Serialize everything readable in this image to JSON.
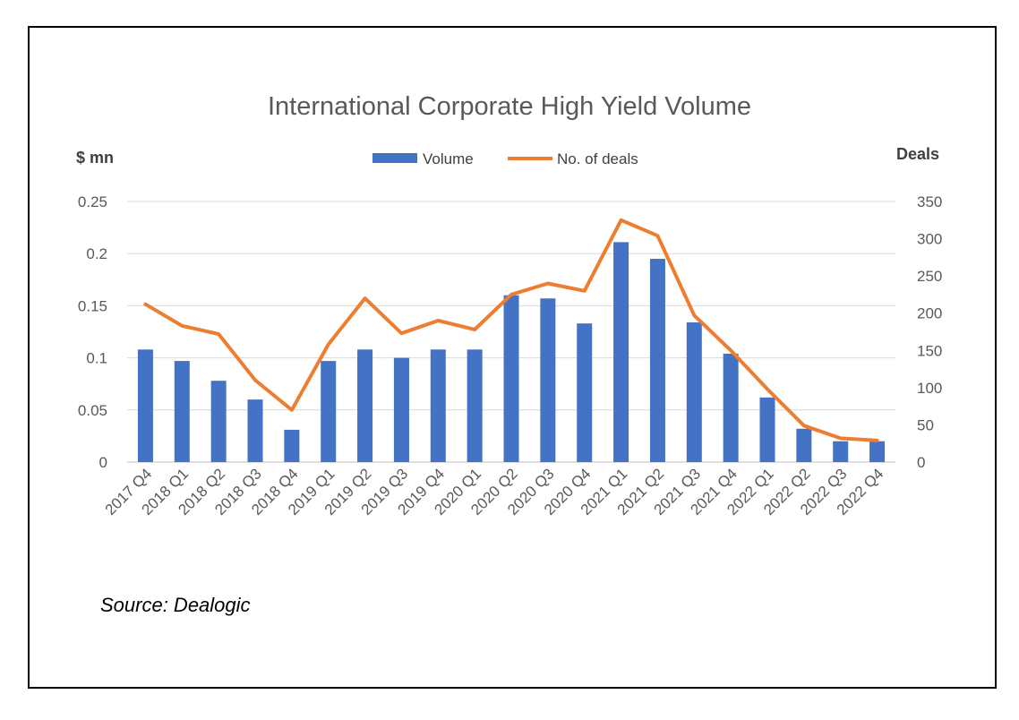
{
  "chart_data": {
    "type": "bar+line",
    "title": "International Corporate High Yield Volume",
    "y_left_label": "$ mn",
    "y_right_label": "Deals",
    "categories": [
      "2017 Q4",
      "2018 Q1",
      "2018 Q2",
      "2018 Q3",
      "2018 Q4",
      "2019 Q1",
      "2019 Q2",
      "2019 Q3",
      "2019 Q4",
      "2020 Q1",
      "2020 Q2",
      "2020 Q3",
      "2020 Q4",
      "2021 Q1",
      "2021 Q2",
      "2021 Q3",
      "2021 Q4",
      "2022 Q1",
      "2022 Q2",
      "2022 Q3",
      "2022 Q4"
    ],
    "series": [
      {
        "name": "Volume",
        "type": "bar",
        "axis": "left",
        "color": "#4472C4",
        "values": [
          0.108,
          0.097,
          0.078,
          0.06,
          0.031,
          0.097,
          0.108,
          0.1,
          0.108,
          0.108,
          0.16,
          0.157,
          0.133,
          0.211,
          0.195,
          0.134,
          0.104,
          0.062,
          0.032,
          0.02,
          0.02
        ]
      },
      {
        "name": "No. of deals",
        "type": "line",
        "axis": "right",
        "color": "#ED7D31",
        "values": [
          212,
          183,
          172,
          110,
          70,
          158,
          220,
          173,
          190,
          178,
          225,
          240,
          230,
          325,
          304,
          197,
          150,
          98,
          49,
          32,
          29
        ]
      }
    ],
    "y_left": {
      "min": 0,
      "max": 0.25,
      "ticks": [
        "0",
        "0.05",
        "0.1",
        "0.15",
        "0.2",
        "0.25"
      ]
    },
    "y_right": {
      "min": 0,
      "max": 350,
      "ticks": [
        "0",
        "50",
        "100",
        "150",
        "200",
        "250",
        "300",
        "350"
      ]
    },
    "grid": true,
    "legend_position": "top-center"
  },
  "source": "Source: Dealogic"
}
